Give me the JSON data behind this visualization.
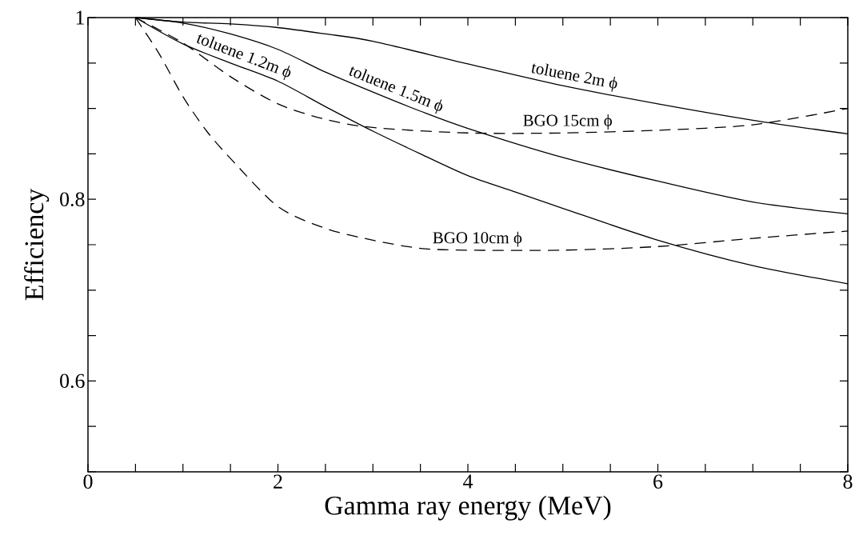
{
  "chart_data": {
    "type": "line",
    "xlabel": "Gamma ray energy (MeV)",
    "ylabel": "Efficiency",
    "xlim": [
      0,
      8
    ],
    "ylim": [
      0.5,
      1
    ],
    "xticks": [
      0,
      {
        "value": 0.5,
        "label": null
      },
      {
        "value": 1,
        "label": null
      },
      {
        "value": 1.5,
        "label": null
      },
      2,
      {
        "value": 2.5,
        "label": null
      },
      {
        "value": 3,
        "label": null
      },
      {
        "value": 3.5,
        "label": null
      },
      4,
      {
        "value": 4.5,
        "label": null
      },
      {
        "value": 5,
        "label": null
      },
      {
        "value": 5.5,
        "label": null
      },
      6,
      {
        "value": 6.5,
        "label": null
      },
      {
        "value": 7,
        "label": null
      },
      {
        "value": 7.5,
        "label": null
      },
      8
    ],
    "yticks": [
      {
        "value": 0.5,
        "label": null
      },
      {
        "value": 0.55,
        "label": null
      },
      0.6,
      {
        "value": 0.65,
        "label": null
      },
      {
        "value": 0.7,
        "label": null
      },
      {
        "value": 0.75,
        "label": null
      },
      0.8,
      {
        "value": 0.85,
        "label": null
      },
      {
        "value": 0.9,
        "label": null
      },
      {
        "value": 0.95,
        "label": null
      },
      1
    ],
    "grid": false,
    "marker": "none",
    "series": [
      {
        "name": "toluene  2m ϕ",
        "color": "#000000",
        "line_style": "solid",
        "x": [
          0.5,
          1,
          1.5,
          2,
          2.5,
          3,
          4,
          5,
          6,
          7,
          8
        ],
        "values": [
          1,
          0.995,
          0.993,
          0.989,
          0.982,
          0.974,
          0.949,
          0.925,
          0.905,
          0.887,
          0.872
        ]
      },
      {
        "name": "toluene  1.5m ϕ",
        "color": "#000000",
        "line_style": "solid",
        "x": [
          0.5,
          1,
          1.5,
          2,
          2.5,
          3,
          3.5,
          4,
          5,
          6,
          7,
          8
        ],
        "values": [
          1,
          0.994,
          0.982,
          0.965,
          0.94,
          0.918,
          0.897,
          0.878,
          0.846,
          0.82,
          0.797,
          0.784
        ]
      },
      {
        "name": "toluene  1.2m ϕ",
        "color": "#000000",
        "line_style": "solid",
        "x": [
          0.5,
          1,
          1.5,
          2,
          2.5,
          3,
          3.5,
          4,
          4.5,
          5,
          6,
          7,
          8
        ],
        "values": [
          1,
          0.971,
          0.95,
          0.93,
          0.902,
          0.875,
          0.85,
          0.826,
          0.808,
          0.79,
          0.755,
          0.727,
          0.707
        ]
      },
      {
        "name": "BGO 15cm ϕ",
        "color": "#000000",
        "line_style": "dashed",
        "x": [
          0.5,
          1,
          1.5,
          2,
          2.5,
          3,
          4,
          5,
          6,
          7,
          8
        ],
        "values": [
          1,
          0.972,
          0.935,
          0.905,
          0.888,
          0.879,
          0.873,
          0.873,
          0.876,
          0.882,
          0.9
        ]
      },
      {
        "name": "BGO 10cm ϕ",
        "color": "#000000",
        "line_style": "dashed",
        "x": [
          0.5,
          0.75,
          1,
          1.25,
          1.5,
          2,
          2.5,
          3,
          3.5,
          4,
          5,
          6,
          7,
          8
        ],
        "values": [
          1,
          0.96,
          0.913,
          0.875,
          0.845,
          0.792,
          0.768,
          0.755,
          0.746,
          0.744,
          0.744,
          0.748,
          0.757,
          0.765
        ]
      }
    ]
  }
}
